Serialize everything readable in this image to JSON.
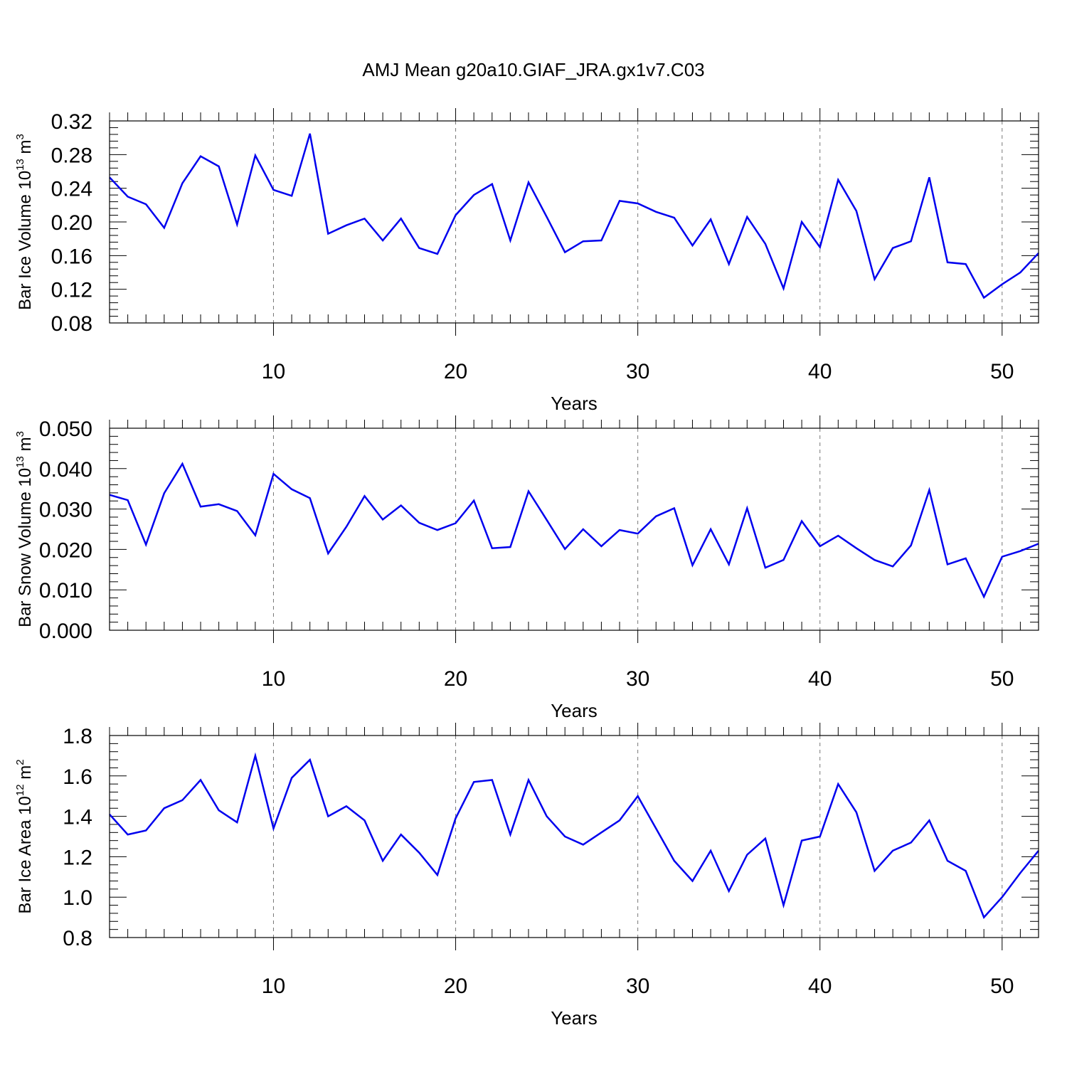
{
  "title": "AMJ Mean g20a10.GIAF_JRA.gx1v7.C03",
  "line_color": "#0000ee",
  "chart_data": [
    {
      "type": "line",
      "series": [
        {
          "name": "Bar Ice Volume",
          "y": [
            0.253,
            0.23,
            0.221,
            0.193,
            0.246,
            0.278,
            0.266,
            0.197,
            0.279,
            0.238,
            0.231,
            0.305,
            0.186,
            0.196,
            0.204,
            0.178,
            0.204,
            0.169,
            0.162,
            0.208,
            0.232,
            0.245,
            0.178,
            0.247,
            0.206,
            0.164,
            0.177,
            0.178,
            0.225,
            0.222,
            0.212,
            0.205,
            0.172,
            0.203,
            0.15,
            0.206,
            0.174,
            0.121,
            0.2,
            0.17,
            0.25,
            0.213,
            0.132,
            0.169,
            0.177,
            0.253,
            0.152,
            0.15,
            0.11,
            0.126,
            0.14,
            0.163
          ]
        }
      ],
      "x": [
        1,
        2,
        3,
        4,
        5,
        6,
        7,
        8,
        9,
        10,
        11,
        12,
        13,
        14,
        15,
        16,
        17,
        18,
        19,
        20,
        21,
        22,
        23,
        24,
        25,
        26,
        27,
        28,
        29,
        30,
        31,
        32,
        33,
        34,
        35,
        36,
        37,
        38,
        39,
        40,
        41,
        42,
        43,
        44,
        45,
        46,
        47,
        48,
        49,
        50,
        51,
        52
      ],
      "xlim": [
        1,
        52
      ],
      "ylim": [
        0.08,
        0.32
      ],
      "yticks": [
        0.08,
        0.12,
        0.16,
        0.2,
        0.24,
        0.28,
        0.32
      ],
      "ytick_labels": [
        "0.08",
        "0.12",
        "0.16",
        "0.20",
        "0.24",
        "0.28",
        "0.32"
      ],
      "xticks": [
        10,
        20,
        30,
        40,
        50
      ],
      "xtick_labels": [
        "10",
        "20",
        "30",
        "40",
        "50"
      ],
      "xlabel": "Years",
      "ylabel": {
        "text": "Bar Ice Volume 10",
        "exp": "13",
        "unit": " m",
        "unit_exp": "3"
      },
      "grid": "vertical dashed at x ticks"
    },
    {
      "type": "line",
      "series": [
        {
          "name": "Bar Snow Volume",
          "y": [
            0.0335,
            0.0322,
            0.0212,
            0.0339,
            0.0412,
            0.0306,
            0.0312,
            0.0295,
            0.0235,
            0.0387,
            0.0349,
            0.0327,
            0.019,
            0.0256,
            0.0332,
            0.0274,
            0.0309,
            0.0266,
            0.0248,
            0.0265,
            0.0321,
            0.0203,
            0.0206,
            0.0344,
            0.0273,
            0.0201,
            0.025,
            0.0208,
            0.0248,
            0.0239,
            0.0282,
            0.0302,
            0.0161,
            0.025,
            0.0163,
            0.0302,
            0.0155,
            0.0174,
            0.027,
            0.0208,
            0.0234,
            0.0203,
            0.0174,
            0.0158,
            0.021,
            0.0347,
            0.0163,
            0.0178,
            0.0083,
            0.0182,
            0.0196,
            0.0214
          ]
        }
      ],
      "x": [
        1,
        2,
        3,
        4,
        5,
        6,
        7,
        8,
        9,
        10,
        11,
        12,
        13,
        14,
        15,
        16,
        17,
        18,
        19,
        20,
        21,
        22,
        23,
        24,
        25,
        26,
        27,
        28,
        29,
        30,
        31,
        32,
        33,
        34,
        35,
        36,
        37,
        38,
        39,
        40,
        41,
        42,
        43,
        44,
        45,
        46,
        47,
        48,
        49,
        50,
        51,
        52
      ],
      "xlim": [
        1,
        52
      ],
      "ylim": [
        0.0,
        0.05
      ],
      "yticks": [
        0.0,
        0.01,
        0.02,
        0.03,
        0.04,
        0.05
      ],
      "ytick_labels": [
        "0.000",
        "0.010",
        "0.020",
        "0.030",
        "0.040",
        "0.050"
      ],
      "xticks": [
        10,
        20,
        30,
        40,
        50
      ],
      "xtick_labels": [
        "10",
        "20",
        "30",
        "40",
        "50"
      ],
      "xlabel": "Years",
      "ylabel": {
        "text": "Bar Snow Volume 10",
        "exp": "13",
        "unit": " m",
        "unit_exp": "3"
      },
      "grid": "vertical dashed at x ticks"
    },
    {
      "type": "line",
      "series": [
        {
          "name": "Bar Ice Area",
          "y": [
            1.41,
            1.31,
            1.33,
            1.44,
            1.48,
            1.58,
            1.43,
            1.37,
            1.7,
            1.34,
            1.59,
            1.68,
            1.4,
            1.45,
            1.38,
            1.18,
            1.31,
            1.22,
            1.11,
            1.39,
            1.57,
            1.58,
            1.31,
            1.58,
            1.4,
            1.3,
            1.26,
            1.32,
            1.38,
            1.5,
            1.34,
            1.18,
            1.08,
            1.23,
            1.03,
            1.21,
            1.29,
            0.96,
            1.28,
            1.3,
            1.56,
            1.42,
            1.13,
            1.23,
            1.27,
            1.38,
            1.18,
            1.13,
            0.9,
            1.0,
            1.12,
            1.23
          ]
        }
      ],
      "x": [
        1,
        2,
        3,
        4,
        5,
        6,
        7,
        8,
        9,
        10,
        11,
        12,
        13,
        14,
        15,
        16,
        17,
        18,
        19,
        20,
        21,
        22,
        23,
        24,
        25,
        26,
        27,
        28,
        29,
        30,
        31,
        32,
        33,
        34,
        35,
        36,
        37,
        38,
        39,
        40,
        41,
        42,
        43,
        44,
        45,
        46,
        47,
        48,
        49,
        50,
        51,
        52
      ],
      "xlim": [
        1,
        52
      ],
      "ylim": [
        0.8,
        1.8
      ],
      "yticks": [
        0.8,
        1.0,
        1.2,
        1.4,
        1.6,
        1.8
      ],
      "ytick_labels": [
        "0.8",
        "1.0",
        "1.2",
        "1.4",
        "1.6",
        "1.8"
      ],
      "xticks": [
        10,
        20,
        30,
        40,
        50
      ],
      "xtick_labels": [
        "10",
        "20",
        "30",
        "40",
        "50"
      ],
      "xlabel": "Years",
      "ylabel": {
        "text": "Bar Ice Area 10",
        "exp": "12",
        "unit": " m",
        "unit_exp": "2"
      },
      "grid": "vertical dashed at x ticks"
    }
  ]
}
